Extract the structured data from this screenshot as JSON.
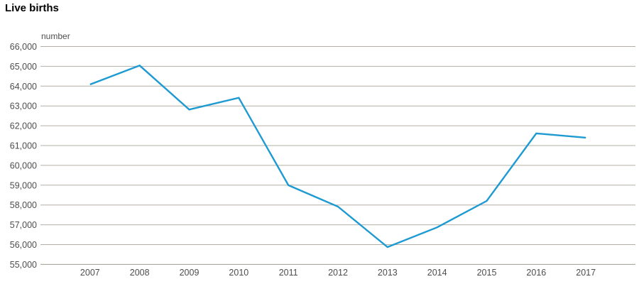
{
  "chart_data": {
    "type": "line",
    "title": "Live births",
    "xlabel": "",
    "ylabel": "number",
    "x": [
      "2007",
      "2008",
      "2009",
      "2010",
      "2011",
      "2012",
      "2013",
      "2014",
      "2015",
      "2016",
      "2017"
    ],
    "series": [
      {
        "name": "Live births",
        "values": [
          64082,
          65038,
          62818,
          63411,
          58998,
          57916,
          55873,
          56870,
          58205,
          61614,
          61397
        ]
      }
    ],
    "ylim": [
      55000,
      66000
    ],
    "ytick_step": 1000,
    "ytick_labels": [
      "66,000",
      "65,000",
      "64,000",
      "63,000",
      "62,000",
      "61,000",
      "60,000",
      "59,000",
      "58,000",
      "57,000",
      "56,000",
      "55,000"
    ],
    "grid": true,
    "legend_position": "none",
    "colors": {
      "line": "#1d9ad2",
      "grid": "#b3afa5",
      "axis": "#9f9b91",
      "tick_text": "#4d4d4d",
      "title_text": "#000000",
      "background": "#ffffff"
    }
  }
}
